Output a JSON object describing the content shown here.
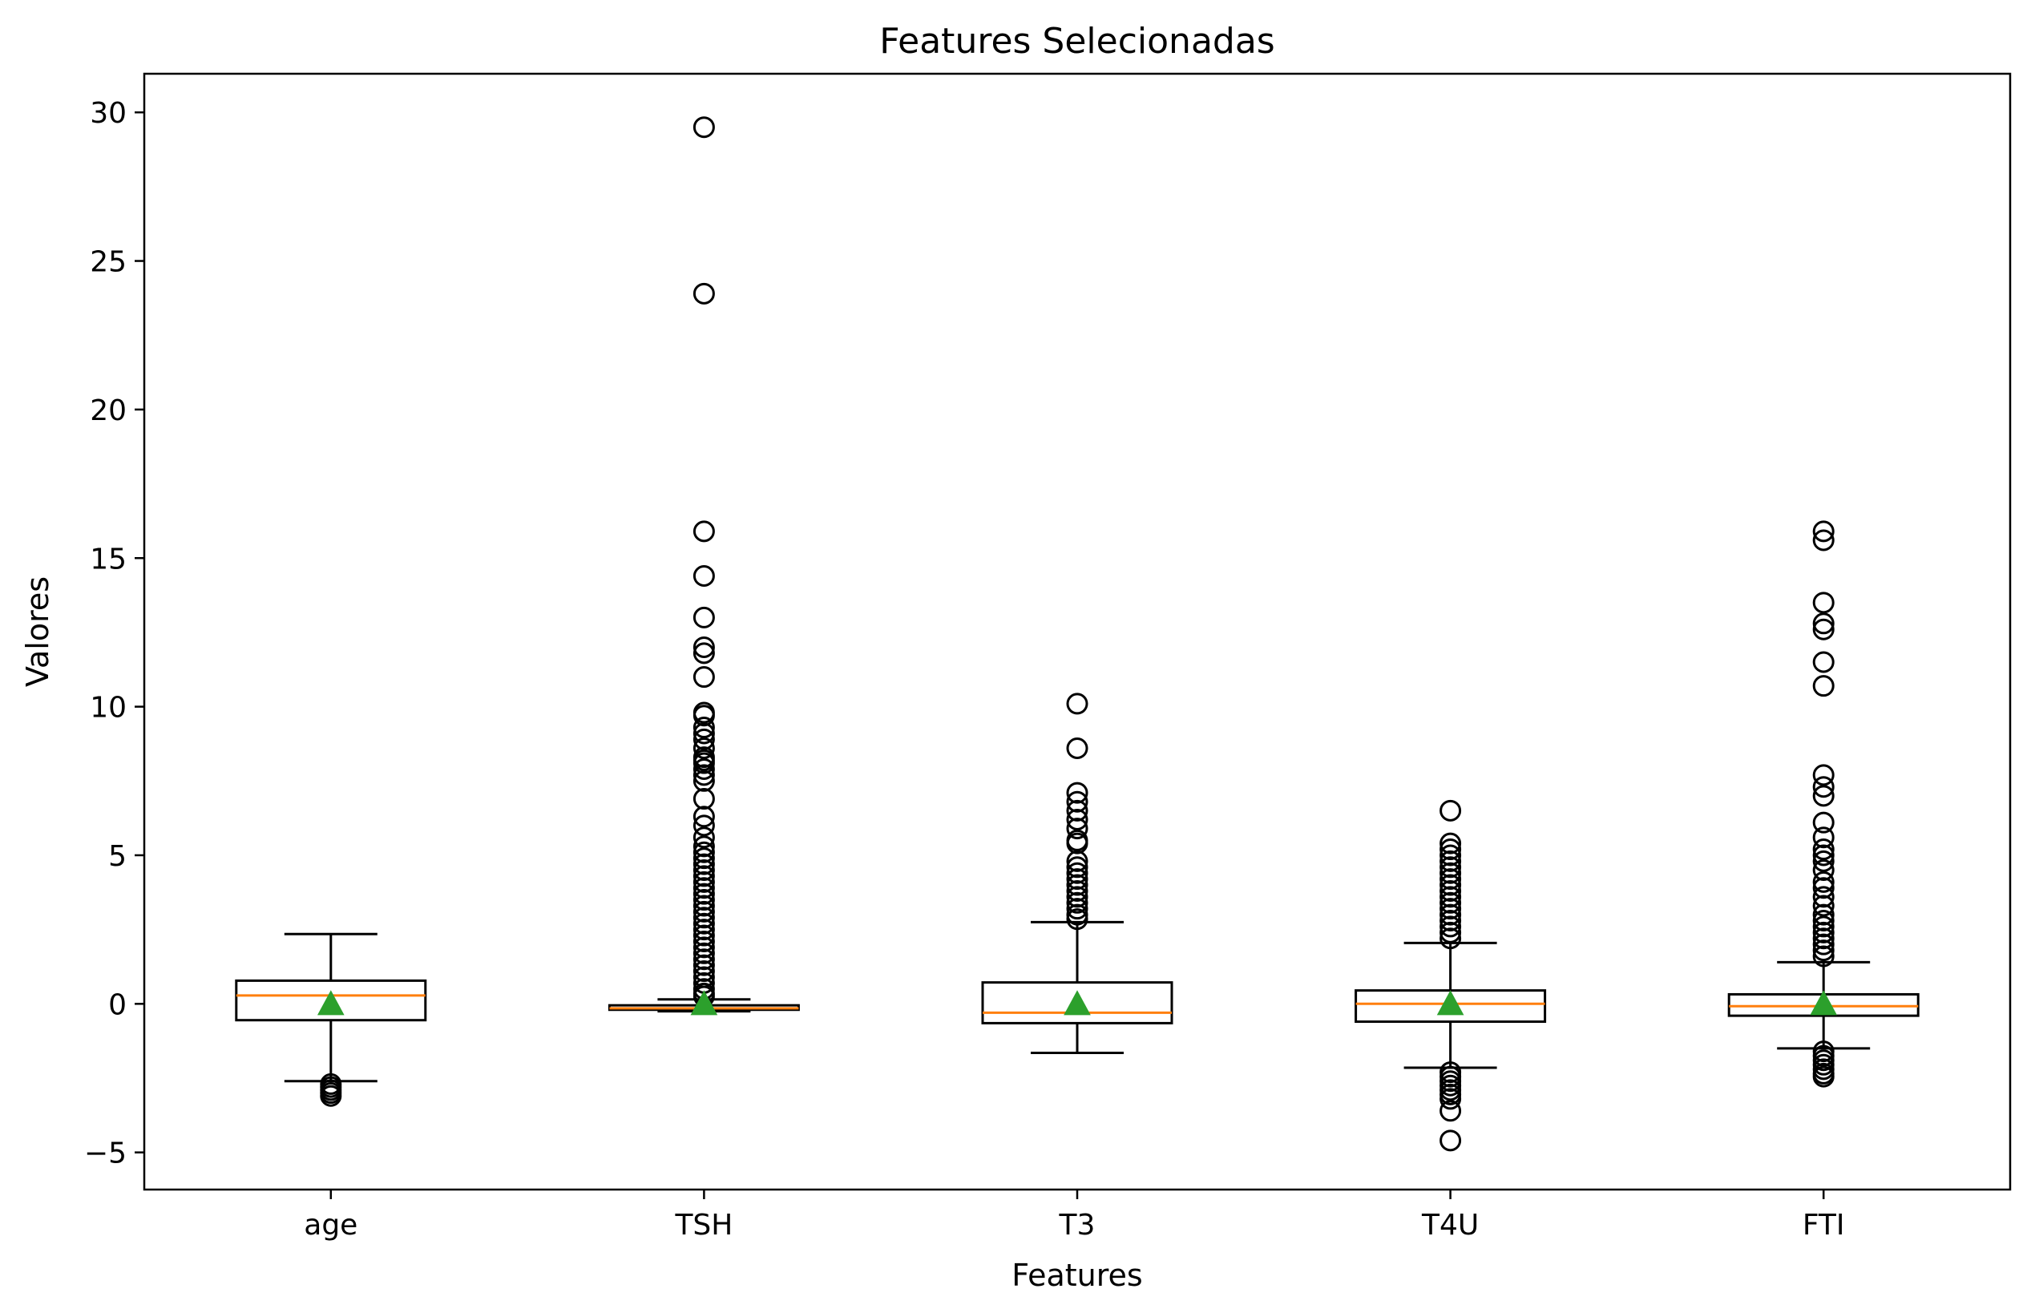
{
  "chart_data": {
    "type": "box",
    "title": "Features Selecionadas",
    "xlabel": "Features",
    "ylabel": "Valores",
    "ylim": [
      -6.25,
      31.3
    ],
    "yticks": [
      -5,
      0,
      5,
      10,
      15,
      20,
      25,
      30
    ],
    "ytick_labels": [
      "−5",
      "0",
      "5",
      "10",
      "15",
      "20",
      "25",
      "30"
    ],
    "grid": false,
    "colors": {
      "box": "#000000",
      "median": "#ff7f0e",
      "mean": "#2ca02c",
      "flier": "#000000"
    },
    "categories": [
      "age",
      "TSH",
      "T3",
      "T4U",
      "FTI"
    ],
    "boxes": [
      {
        "name": "age",
        "whisker_low": -2.6,
        "q1": -0.55,
        "median": 0.28,
        "q3": 0.78,
        "whisker_high": 2.35,
        "mean": 0.0,
        "fliers": [
          -2.7,
          -2.8,
          -2.9,
          -3.0,
          -3.1
        ]
      },
      {
        "name": "TSH",
        "whisker_low": -0.25,
        "q1": -0.2,
        "median": -0.15,
        "q3": -0.05,
        "whisker_high": 0.15,
        "mean": 0.0,
        "fliers": [
          29.5,
          23.9,
          15.9,
          14.4,
          13.0,
          12.0,
          11.8,
          11.0,
          9.8,
          9.7,
          9.3,
          9.1,
          8.9,
          8.6,
          8.3,
          8.2,
          8.1,
          7.9,
          7.7,
          7.5,
          6.9,
          6.3,
          6.0,
          5.6,
          5.3,
          5.1,
          4.9,
          4.7,
          4.5,
          4.3,
          4.1,
          3.9,
          3.7,
          3.5,
          3.3,
          3.1,
          2.9,
          2.7,
          2.5,
          2.3,
          2.1,
          1.9,
          1.7,
          1.5,
          1.3,
          1.1,
          0.9,
          0.7,
          0.5,
          0.35,
          0.25
        ]
      },
      {
        "name": "T3",
        "whisker_low": -1.65,
        "q1": -0.65,
        "median": -0.3,
        "q3": 0.72,
        "whisker_high": 2.75,
        "mean": 0.0,
        "fliers": [
          10.1,
          8.6,
          7.1,
          6.8,
          6.5,
          6.2,
          5.9,
          5.5,
          5.4,
          4.8,
          4.6,
          4.4,
          4.2,
          4.0,
          3.8,
          3.6,
          3.4,
          3.2,
          3.0,
          2.85
        ]
      },
      {
        "name": "T4U",
        "whisker_low": -2.15,
        "q1": -0.6,
        "median": 0.0,
        "q3": 0.45,
        "whisker_high": 2.05,
        "mean": 0.0,
        "fliers": [
          6.5,
          5.4,
          5.2,
          5.0,
          4.8,
          4.6,
          4.4,
          4.2,
          4.0,
          3.8,
          3.6,
          3.4,
          3.2,
          3.0,
          2.8,
          2.6,
          2.4,
          2.2,
          -2.3,
          -2.45,
          -2.6,
          -2.75,
          -2.9,
          -3.05,
          -3.2,
          -3.6,
          -4.6
        ]
      },
      {
        "name": "FTI",
        "whisker_low": -1.5,
        "q1": -0.4,
        "median": -0.08,
        "q3": 0.32,
        "whisker_high": 1.4,
        "mean": 0.0,
        "fliers": [
          15.9,
          15.6,
          13.5,
          12.8,
          12.6,
          11.5,
          10.7,
          7.7,
          7.3,
          7.0,
          6.1,
          5.6,
          5.2,
          5.0,
          4.8,
          4.5,
          4.1,
          3.9,
          3.6,
          3.3,
          3.0,
          2.8,
          2.6,
          2.4,
          2.2,
          2.0,
          1.8,
          1.6,
          -1.6,
          -1.75,
          -1.9,
          -2.05,
          -2.2,
          -2.35,
          -2.45
        ]
      }
    ]
  }
}
